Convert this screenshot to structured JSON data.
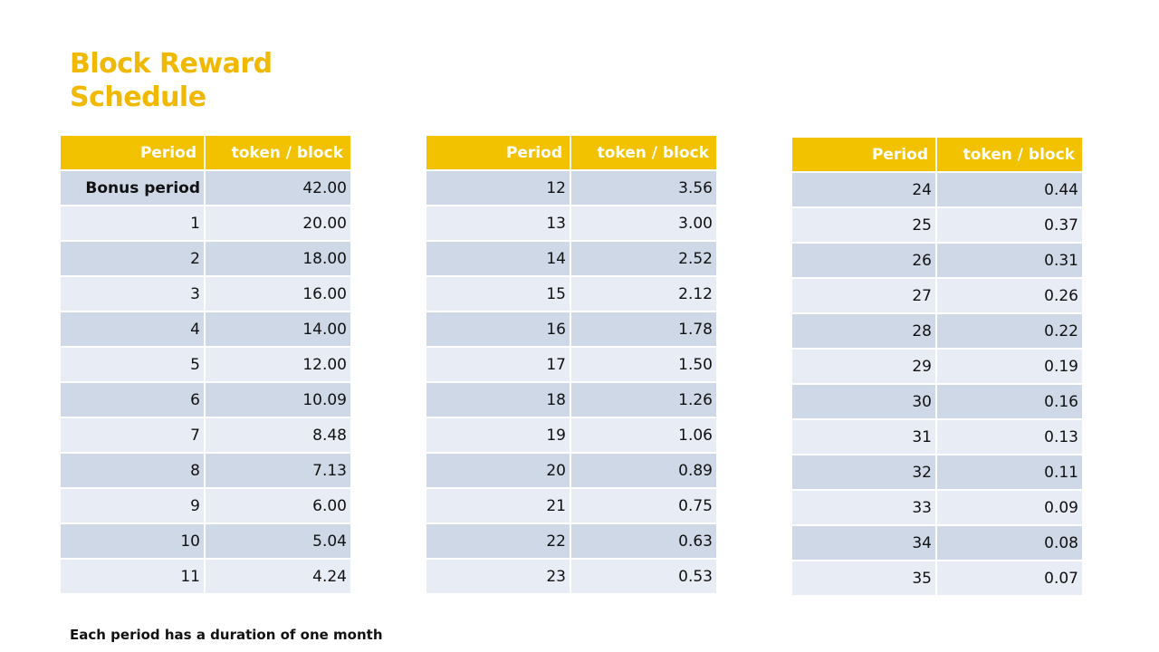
{
  "title": "Block Reward Schedule",
  "tables": [
    {
      "header": [
        "Period",
        "token / block"
      ],
      "rows": [
        [
          "Bonus period",
          "42.00"
        ],
        [
          "1",
          "20.00"
        ],
        [
          "2",
          "18.00"
        ],
        [
          "3",
          "16.00"
        ],
        [
          "4",
          "14.00"
        ],
        [
          "5",
          "12.00"
        ],
        [
          "6",
          "10.09"
        ],
        [
          "7",
          "8.48"
        ],
        [
          "8",
          "7.13"
        ],
        [
          "9",
          "6.00"
        ],
        [
          "10",
          "5.04"
        ],
        [
          "11",
          "4.24"
        ]
      ]
    },
    {
      "header": [
        "Period",
        "token / block"
      ],
      "rows": [
        [
          "12",
          "3.56"
        ],
        [
          "13",
          "3.00"
        ],
        [
          "14",
          "2.52"
        ],
        [
          "15",
          "2.12"
        ],
        [
          "16",
          "1.78"
        ],
        [
          "17",
          "1.50"
        ],
        [
          "18",
          "1.26"
        ],
        [
          "19",
          "1.06"
        ],
        [
          "20",
          "0.89"
        ],
        [
          "21",
          "0.75"
        ],
        [
          "22",
          "0.63"
        ],
        [
          "23",
          "0.53"
        ]
      ]
    },
    {
      "header": [
        "Period",
        "token / block"
      ],
      "rows": [
        [
          "24",
          "0.44"
        ],
        [
          "25",
          "0.37"
        ],
        [
          "26",
          "0.31"
        ],
        [
          "27",
          "0.26"
        ],
        [
          "28",
          "0.22"
        ],
        [
          "29",
          "0.19"
        ],
        [
          "30",
          "0.16"
        ],
        [
          "31",
          "0.13"
        ],
        [
          "32",
          "0.11"
        ],
        [
          "33",
          "0.09"
        ],
        [
          "34",
          "0.08"
        ],
        [
          "35",
          "0.07"
        ]
      ]
    }
  ],
  "footnote": "Each period has a duration of one month"
}
